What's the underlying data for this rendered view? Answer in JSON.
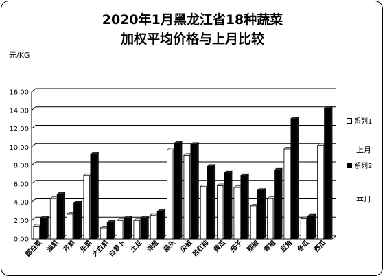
{
  "chart_data": {
    "type": "bar",
    "title": "2020年1月黑龙江省18种蔬菜",
    "subtitle": "加权平均价格与上月比较",
    "ylabel": "元/KG",
    "ylim": [
      0,
      16
    ],
    "ytick_labels": [
      "0.00",
      "2.00",
      "4.00",
      "6.00",
      "8.00",
      "10.00",
      "12.00",
      "14.00",
      "16.00"
    ],
    "grid": true,
    "legend_position": "right",
    "categories": [
      "圆白菜",
      "油菜",
      "芹菜",
      "生菜",
      "大白菜",
      "白萝卜",
      "土豆",
      "洋葱",
      "蒜头",
      "尖椒",
      "西红柿",
      "黄瓜",
      "茄子",
      "辣椒",
      "青椒",
      "豆角",
      "冬瓜",
      "西瓜"
    ],
    "series": [
      {
        "name": "系列1",
        "color": "#ffffff",
        "values": [
          1.4,
          4.4,
          2.7,
          6.9,
          1.2,
          2.0,
          2.0,
          2.6,
          9.7,
          9.1,
          5.7,
          5.8,
          5.6,
          3.6,
          4.4,
          9.8,
          2.2,
          10.2
        ]
      },
      {
        "name": "系列2",
        "color": "#000000",
        "values": [
          2.3,
          4.9,
          3.9,
          9.2,
          1.8,
          2.3,
          2.3,
          3.0,
          10.4,
          10.3,
          7.9,
          7.2,
          6.9,
          5.3,
          7.5,
          13.1,
          2.5,
          14.2
        ]
      }
    ],
    "annotations": [
      "上月",
      "本月"
    ]
  }
}
